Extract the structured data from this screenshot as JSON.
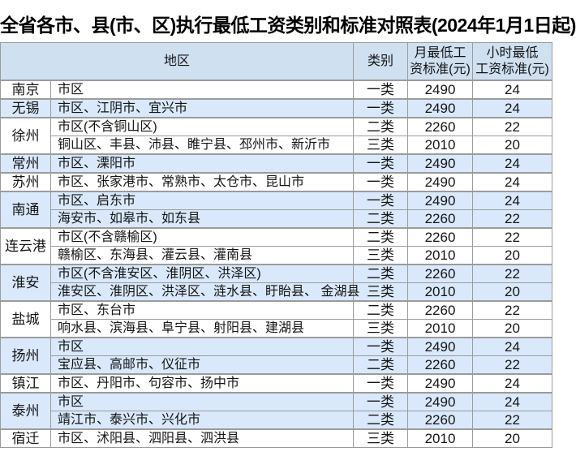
{
  "title": "全省各市、县(市、区)执行最低工资类别和标准对照表(2024年1月1日起)",
  "colors": {
    "header_bg": "#cfe0f1",
    "stripe_row_bg": "#d9e9fb",
    "group_border": "#9b9b9b",
    "inner_row_border": "#4d4d4d",
    "text": "#141414",
    "title_text": "#000000"
  },
  "table": {
    "headers": {
      "region": "地区",
      "category": "类别",
      "monthly": [
        "月最低工",
        "资标准(元)"
      ],
      "hourly": [
        "小时最低",
        "工资标准(元)"
      ]
    },
    "groups": [
      {
        "city": "南京",
        "rows": [
          {
            "region": "市区",
            "category": "一类",
            "monthly": "2490",
            "hourly": "24"
          }
        ]
      },
      {
        "city": "无锡",
        "rows": [
          {
            "region": "市区、江阴市、宜兴市",
            "category": "一类",
            "monthly": "2490",
            "hourly": "24"
          }
        ]
      },
      {
        "city": "徐州",
        "rows": [
          {
            "region": "市区(不含铜山区)",
            "category": "二类",
            "monthly": "2260",
            "hourly": "22"
          },
          {
            "region": "铜山区、丰县、沛县、睢宁县、邳州市、新沂市",
            "category": "三类",
            "monthly": "2010",
            "hourly": "20"
          }
        ]
      },
      {
        "city": "常州",
        "rows": [
          {
            "region": "市区、溧阳市",
            "category": "一类",
            "monthly": "2490",
            "hourly": "24"
          }
        ]
      },
      {
        "city": "苏州",
        "rows": [
          {
            "region": "市区、张家港市、常熟市、太仓市、昆山市",
            "category": "一类",
            "monthly": "2490",
            "hourly": "24"
          }
        ]
      },
      {
        "city": "南通",
        "rows": [
          {
            "region": "市区、启东市",
            "category": "一类",
            "monthly": "2490",
            "hourly": "24"
          },
          {
            "region": "海安市、如皋市、如东县",
            "category": "二类",
            "monthly": "2260",
            "hourly": "22"
          }
        ]
      },
      {
        "city": "连云港",
        "rows": [
          {
            "region": "市区(不含赣榆区)",
            "category": "二类",
            "monthly": "2260",
            "hourly": "22"
          },
          {
            "region": "赣榆区、东海县、灌云县、灌南县",
            "category": "三类",
            "monthly": "2010",
            "hourly": "20"
          }
        ]
      },
      {
        "city": "淮安",
        "rows": [
          {
            "region": "市区(不含淮安区、淮阴区、洪泽区)",
            "category": "二类",
            "monthly": "2260",
            "hourly": "22"
          },
          {
            "region": "淮安区、淮阴区、洪泽区、涟水县、盱眙县、 金湖县",
            "category": "三类",
            "monthly": "2010",
            "hourly": "20"
          }
        ]
      },
      {
        "city": "盐城",
        "rows": [
          {
            "region": "市区、东台市",
            "category": "二类",
            "monthly": "2260",
            "hourly": "22"
          },
          {
            "region": "响水县、滨海县、阜宁县、射阳县、建湖县",
            "category": "三类",
            "monthly": "2010",
            "hourly": "20"
          }
        ]
      },
      {
        "city": "扬州",
        "rows": [
          {
            "region": "市区",
            "category": "一类",
            "monthly": "2490",
            "hourly": "24"
          },
          {
            "region": "宝应县、高邮市、仪征市",
            "category": "二类",
            "monthly": "2260",
            "hourly": "22"
          }
        ]
      },
      {
        "city": "镇江",
        "rows": [
          {
            "region": "市区、丹阳市、句容市、扬中市",
            "category": "一类",
            "monthly": "2490",
            "hourly": "24"
          }
        ]
      },
      {
        "city": "泰州",
        "rows": [
          {
            "region": "市区",
            "category": "一类",
            "monthly": "2490",
            "hourly": "24"
          },
          {
            "region": "靖江市、泰兴市、兴化市",
            "category": "二类",
            "monthly": "2260",
            "hourly": "22"
          }
        ]
      },
      {
        "city": "宿迁",
        "rows": [
          {
            "region": "市区、沭阳县、泗阳县、泗洪县",
            "category": "三类",
            "monthly": "2010",
            "hourly": "20"
          }
        ]
      }
    ]
  }
}
